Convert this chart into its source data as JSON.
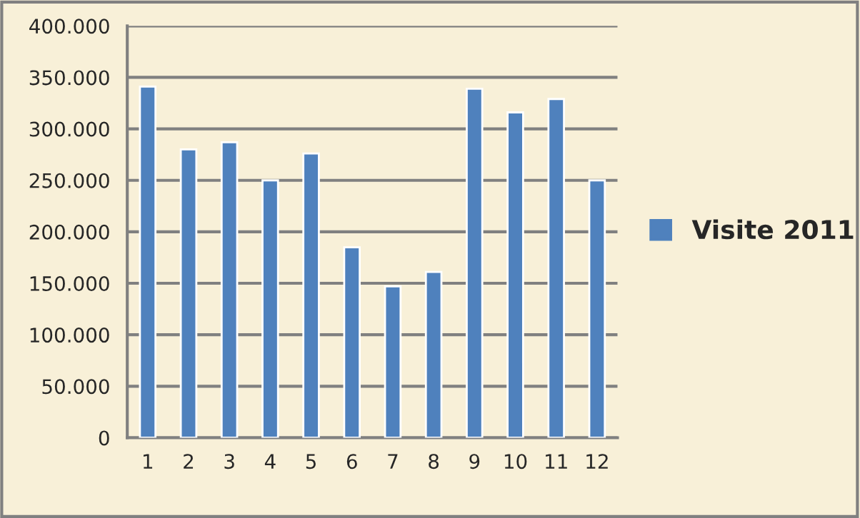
{
  "chart_data": {
    "type": "bar",
    "categories": [
      "1",
      "2",
      "3",
      "4",
      "5",
      "6",
      "7",
      "8",
      "9",
      "10",
      "11",
      "12"
    ],
    "series": [
      {
        "name": "Visite 2011",
        "color": "#4f81bd",
        "values": [
          341000,
          280000,
          287000,
          250000,
          276000,
          185000,
          147000,
          161000,
          339000,
          316000,
          329000,
          250000
        ]
      }
    ],
    "ylim": [
      0,
      400000
    ],
    "yticks": [
      {
        "value": 0,
        "label": "0"
      },
      {
        "value": 50000,
        "label": "50.000"
      },
      {
        "value": 100000,
        "label": "100.000"
      },
      {
        "value": 150000,
        "label": "150.000"
      },
      {
        "value": 200000,
        "label": "200.000"
      },
      {
        "value": 250000,
        "label": "250.000"
      },
      {
        "value": 300000,
        "label": "300.000"
      },
      {
        "value": 350000,
        "label": "350.000"
      },
      {
        "value": 400000,
        "label": "400.000"
      }
    ],
    "grid": "y",
    "legend": "right"
  }
}
